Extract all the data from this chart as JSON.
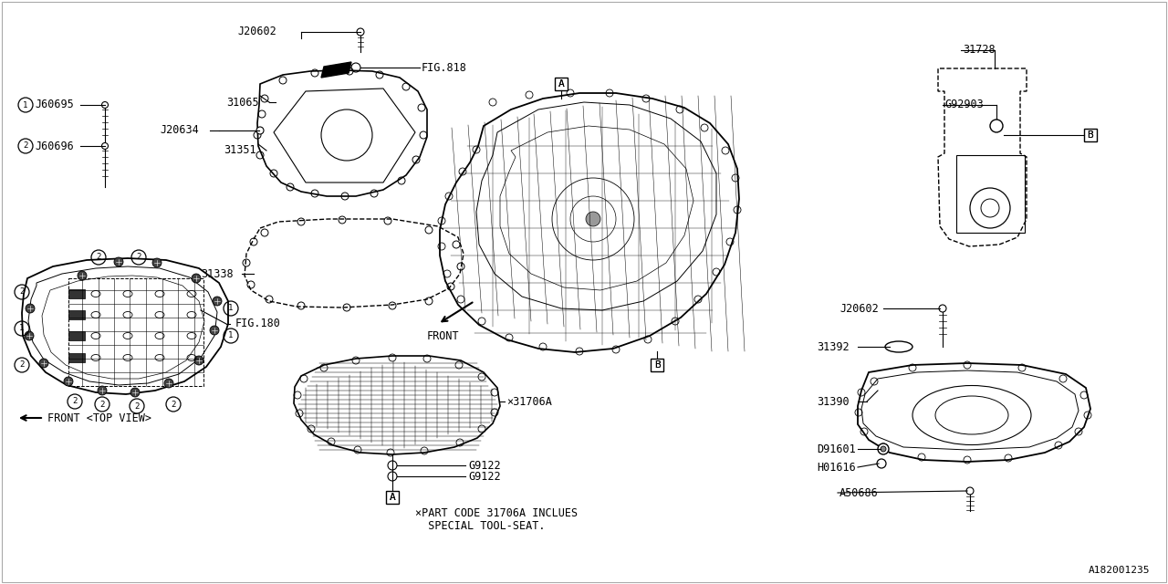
{
  "bg_color": "#ffffff",
  "diagram_id": "A182001235",
  "note_line1": "×PART CODE 31706A INCLUES",
  "note_line2": "  SPECIAL TOOL-SEAT.",
  "fs": 8.5
}
